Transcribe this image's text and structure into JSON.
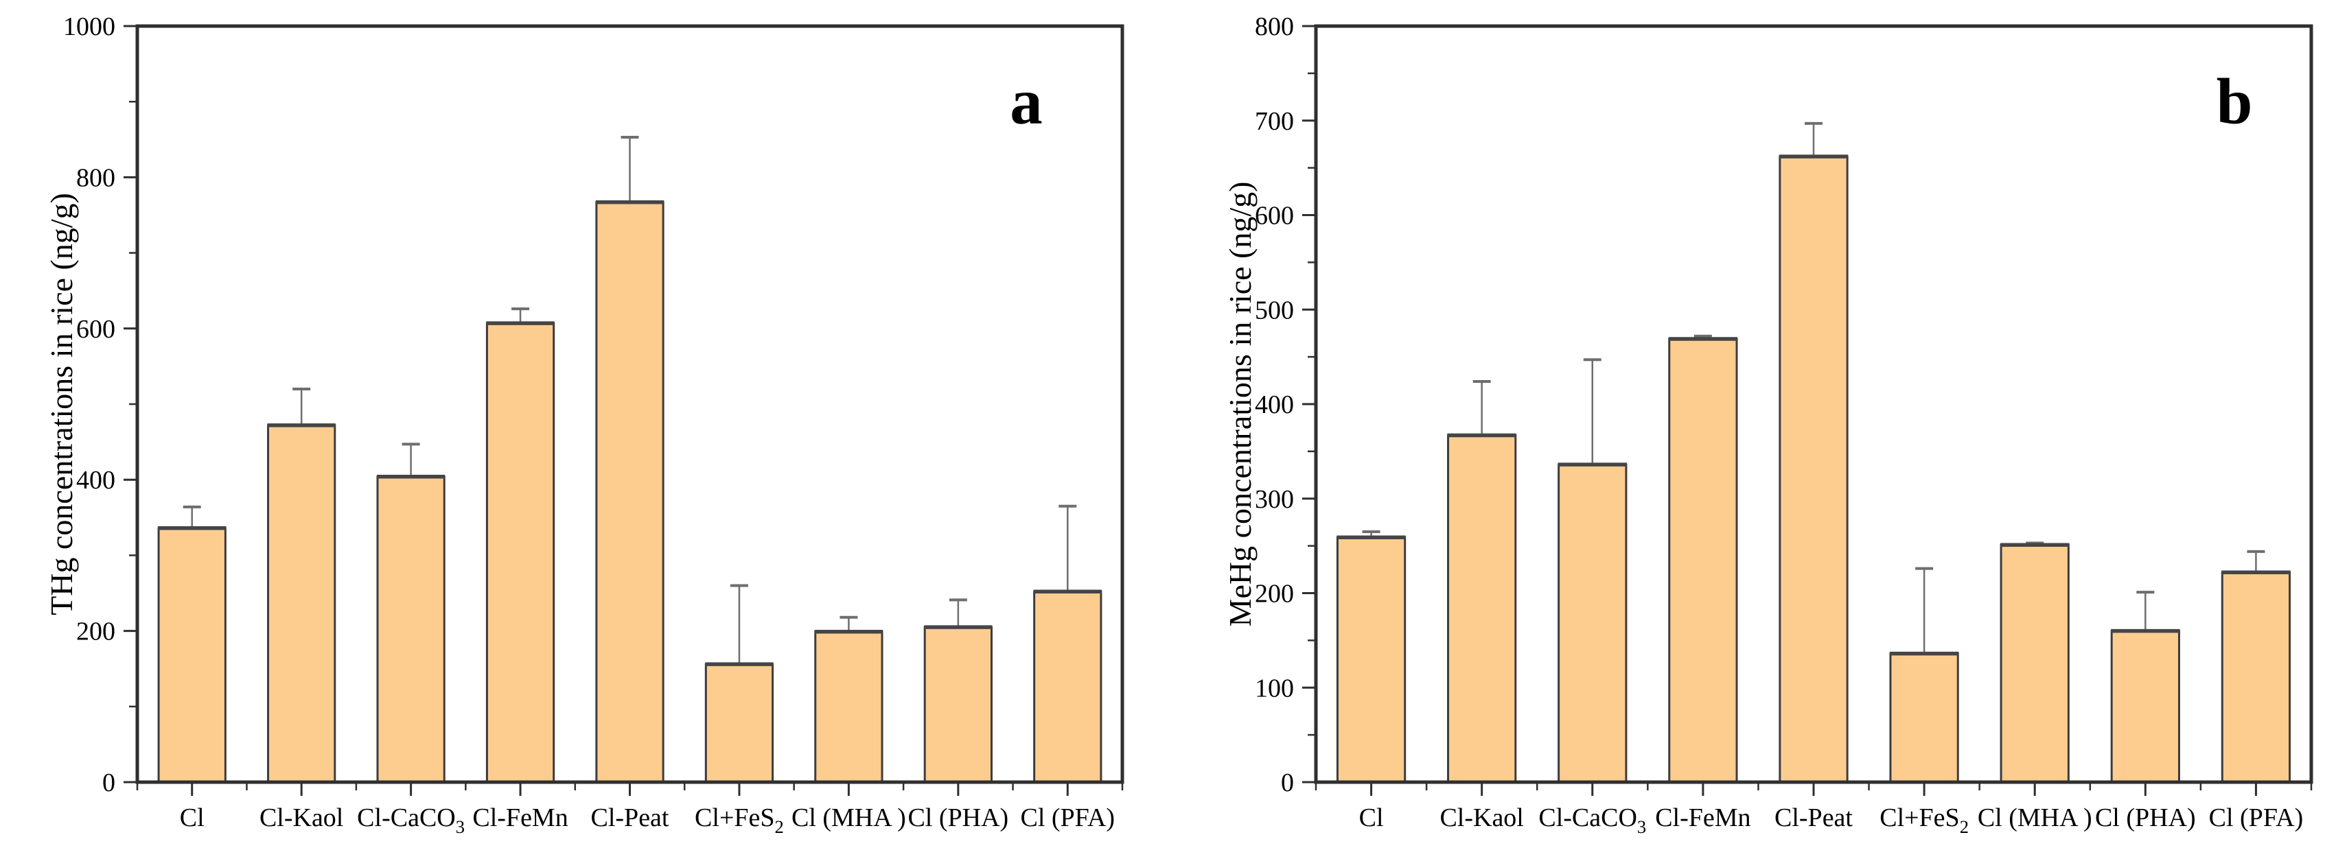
{
  "figure": {
    "background": "#ffffff",
    "description": "Two-panel bar chart of mercury concentrations in rice under different soil amendments"
  },
  "chart_data": [
    {
      "type": "bar",
      "panel_label": "a",
      "title": "",
      "xlabel": "",
      "ylabel": "THg concentrations in rice (ng/g)",
      "categories": [
        "Cl",
        "Cl-Kaol",
        "Cl-CaCO₃",
        "Cl-FeMn",
        "Cl-Peat",
        "Cl+FeS₂",
        "Cl (MHA）",
        "Cl (PHA)",
        "Cl (PFA)"
      ],
      "values": [
        336,
        472,
        404,
        607,
        767,
        156,
        199,
        205,
        252
      ],
      "errors_plus": [
        28,
        48,
        43,
        19,
        86,
        104,
        19,
        36,
        113
      ],
      "ylim": [
        0,
        1000
      ],
      "ytick_step": 200,
      "yminor_step": 100,
      "ytick_labels": [
        "0",
        "200",
        "400",
        "600",
        "800",
        "1000"
      ],
      "grid": false,
      "legend": null,
      "bar_color": "#FDCD90",
      "bar_edge_color": "#3C3C3C",
      "error_bar_color": "#6E6E6E",
      "axis_color": "#2F2F2F",
      "text_color": "#000000"
    },
    {
      "type": "bar",
      "panel_label": "b",
      "title": "",
      "xlabel": "",
      "ylabel": "MeHg concentrations in rice (ng/g)",
      "categories": [
        "Cl",
        "Cl-Kaol",
        "Cl-CaCO₃",
        "Cl-FeMn",
        "Cl-Peat",
        "Cl+FeS₂",
        "Cl (MHA）",
        "Cl (PHA)",
        "Cl (PFA)"
      ],
      "values": [
        259,
        367,
        336,
        469,
        662,
        136,
        251,
        160,
        222
      ],
      "errors_plus": [
        6,
        57,
        111,
        3,
        35,
        90,
        2,
        41,
        22
      ],
      "ylim": [
        0,
        800
      ],
      "ytick_step": 100,
      "yminor_step": 50,
      "ytick_labels": [
        "0",
        "100",
        "200",
        "300",
        "400",
        "500",
        "600",
        "700",
        "800"
      ],
      "grid": false,
      "legend": null,
      "bar_color": "#FDCD90",
      "bar_edge_color": "#3C3C3C",
      "error_bar_color": "#6E6E6E",
      "axis_color": "#2F2F2F",
      "text_color": "#000000"
    }
  ]
}
